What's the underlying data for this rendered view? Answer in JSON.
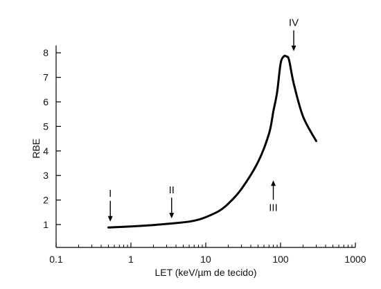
{
  "chart_data": {
    "type": "line",
    "title": "",
    "xlabel": "LET (keV/µm de tecido)",
    "ylabel": "RBE",
    "x_scale": "log",
    "xlim": [
      0.1,
      1000
    ],
    "ylim": [
      0,
      8.3
    ],
    "x_tick_labels": [
      "0.1",
      "1",
      "10",
      "100",
      "1000"
    ],
    "x_tick_values": [
      0.1,
      1,
      10,
      100,
      1000
    ],
    "y_tick_labels": [
      "1",
      "2",
      "3",
      "4",
      "5",
      "6",
      "7",
      "8"
    ],
    "y_tick_values": [
      1,
      2,
      3,
      4,
      5,
      6,
      7,
      8
    ],
    "grid": false,
    "legend": "none",
    "series": [
      {
        "color": "#000000",
        "x": [
          0.5,
          1,
          2,
          4,
          6,
          8,
          10,
          15,
          20,
          30,
          50,
          70,
          80,
          90,
          100,
          110,
          120,
          130,
          150,
          200,
          300
        ],
        "y": [
          0.88,
          0.92,
          0.98,
          1.06,
          1.12,
          1.2,
          1.3,
          1.55,
          1.85,
          2.45,
          3.55,
          4.7,
          5.6,
          6.4,
          7.55,
          7.85,
          7.85,
          7.7,
          6.75,
          5.4,
          4.4
        ]
      }
    ],
    "annotations": [
      {
        "label": "I",
        "x": 0.53,
        "y": 0.95,
        "arrow": "down"
      },
      {
        "label": "II",
        "x": 3.5,
        "y": 1.08,
        "arrow": "down"
      },
      {
        "label": "III",
        "x": 80,
        "y": 2.8,
        "arrow": "up"
      },
      {
        "label": "IV",
        "x": 150,
        "y": 7.9,
        "arrow": "down"
      }
    ]
  }
}
